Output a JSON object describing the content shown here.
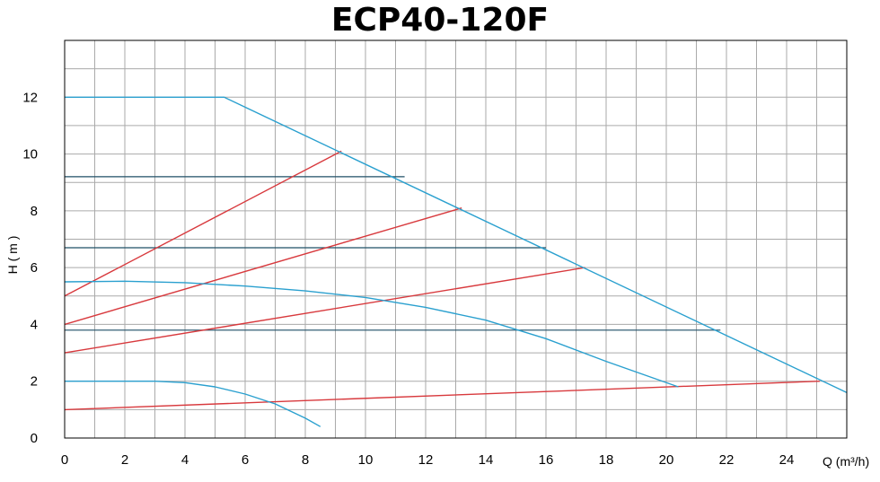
{
  "chart_data": {
    "type": "line",
    "title": "ECP40-120F",
    "xlabel": "Q (m³/h)",
    "ylabel": "H ( m )",
    "xlim": [
      0,
      26
    ],
    "ylim": [
      0,
      14
    ],
    "x_ticks": [
      0,
      2,
      4,
      6,
      8,
      10,
      12,
      14,
      16,
      18,
      20,
      22,
      24
    ],
    "y_ticks": [
      0,
      2,
      4,
      6,
      8,
      10,
      12
    ],
    "grid": true,
    "colors": {
      "pump_curve": "#2aa0cf",
      "system_curve": "#d8393d",
      "limit_line": "#1f4f66",
      "grid": "#aaaaaa"
    },
    "series": [
      {
        "kind": "pump_curve",
        "x": [
          0,
          5.3,
          26
        ],
        "y": [
          12,
          12,
          1.6
        ]
      },
      {
        "kind": "pump_curve",
        "x": [
          0,
          2,
          4,
          6,
          8,
          10,
          12,
          14,
          16,
          18,
          20.4
        ],
        "y": [
          5.5,
          5.52,
          5.47,
          5.35,
          5.18,
          4.95,
          4.6,
          4.15,
          3.5,
          2.7,
          1.8
        ]
      },
      {
        "kind": "pump_curve",
        "x": [
          0,
          2,
          3,
          4,
          5,
          6,
          7,
          8,
          8.5
        ],
        "y": [
          2,
          2,
          2,
          1.95,
          1.8,
          1.55,
          1.2,
          0.7,
          0.4
        ]
      },
      {
        "kind": "system_curve",
        "x": [
          0,
          9.2
        ],
        "y": [
          5,
          10.1
        ]
      },
      {
        "kind": "system_curve",
        "x": [
          0,
          13.2
        ],
        "y": [
          4,
          8.1
        ]
      },
      {
        "kind": "system_curve",
        "x": [
          0,
          17.3
        ],
        "y": [
          3,
          6
        ]
      },
      {
        "kind": "system_curve",
        "x": [
          0,
          25.1
        ],
        "y": [
          1,
          2
        ]
      },
      {
        "kind": "limit_line",
        "x": [
          0,
          11.3
        ],
        "y": [
          9.2,
          9.2
        ]
      },
      {
        "kind": "limit_line",
        "x": [
          0,
          16
        ],
        "y": [
          6.7,
          6.7
        ]
      },
      {
        "kind": "limit_line",
        "x": [
          0,
          21.8
        ],
        "y": [
          3.8,
          3.8
        ]
      }
    ]
  }
}
